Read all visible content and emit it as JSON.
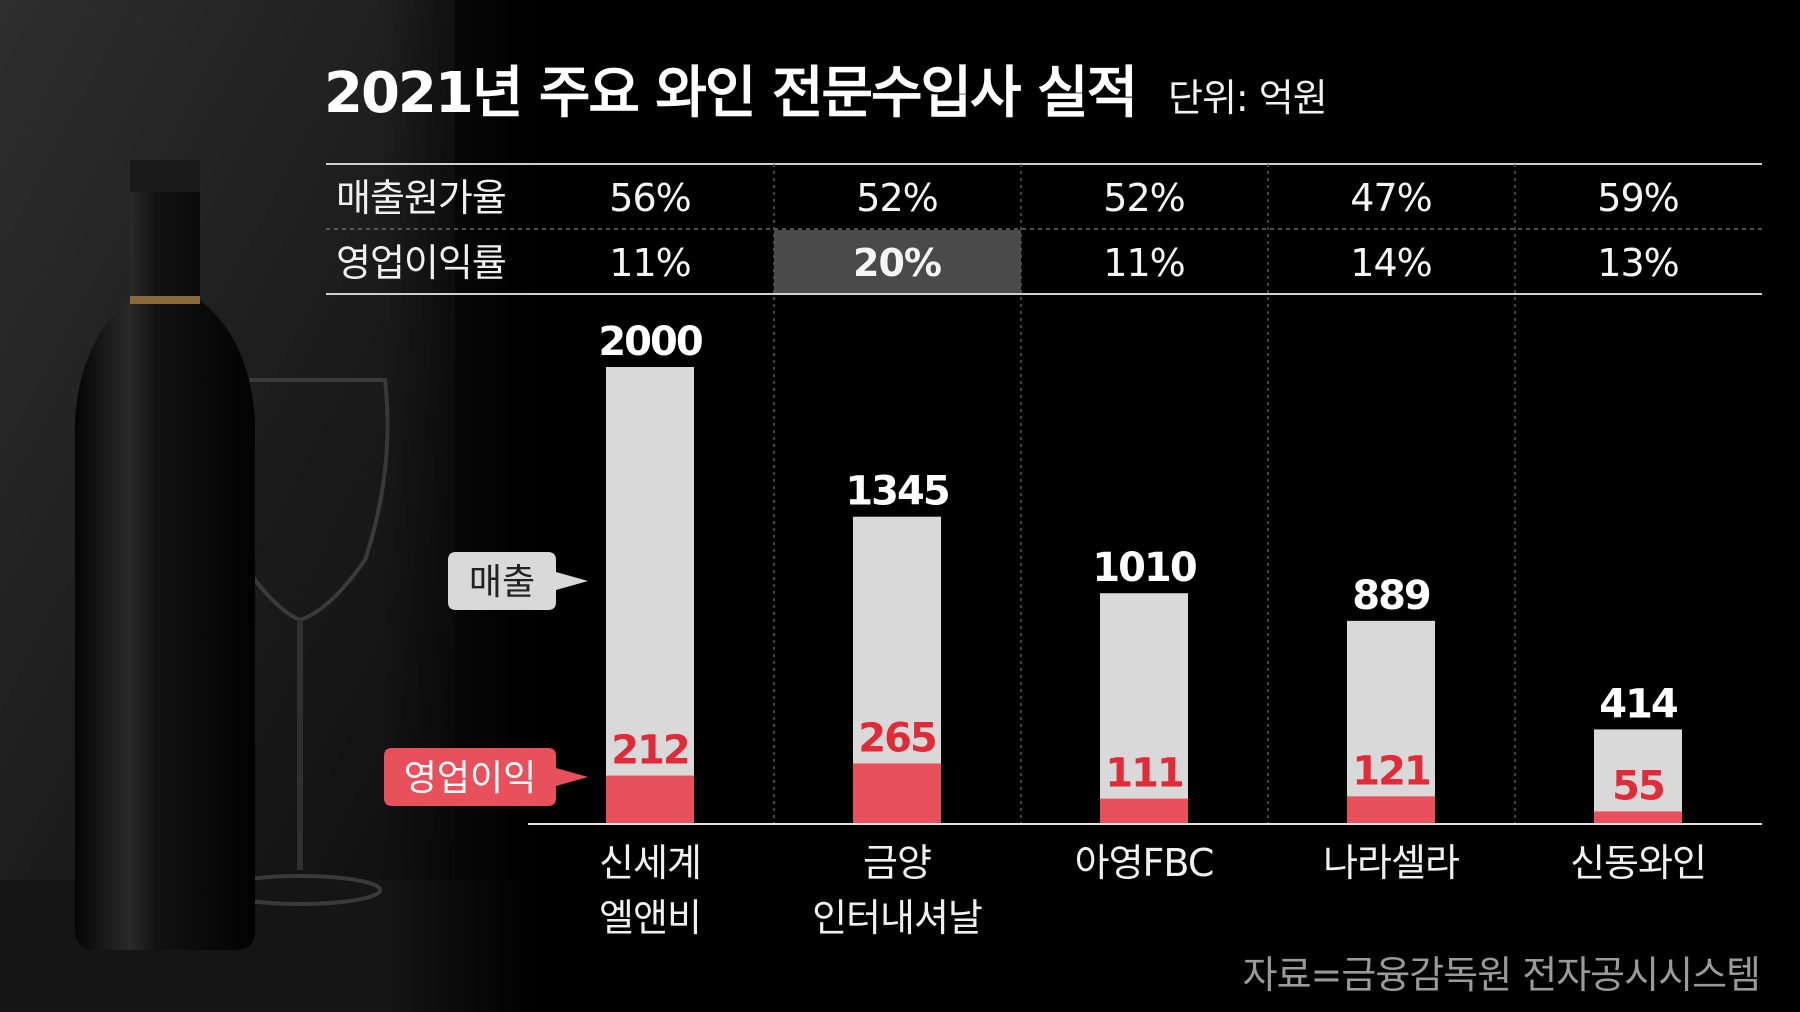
{
  "title": "2021년 주요 와인 전문수입사 실적",
  "unit": "단위: 억원",
  "source": "자료=금융감독원 전자공시시스템",
  "legend": {
    "sales": "매출",
    "operating_profit": "영업이익"
  },
  "table": {
    "row_labels": [
      "매출원가율",
      "영업이익률"
    ],
    "cost_ratio": [
      "56%",
      "52%",
      "52%",
      "47%",
      "59%"
    ],
    "margin": [
      "11%",
      "20%",
      "11%",
      "14%",
      "13%"
    ],
    "highlight_index": 1
  },
  "colors": {
    "sales_bar": "#d9d9d9",
    "profit_bar": "#e8505b",
    "profit_label": "#e02b38",
    "highlight_cell": "#4a4a4a",
    "background": "#000000"
  },
  "chart_data": {
    "type": "bar",
    "title": "2021년 주요 와인 전문수입사 실적",
    "categories": [
      [
        "신세계",
        "엘앤비"
      ],
      [
        "금양",
        "인터내셔날"
      ],
      [
        "아영FBC"
      ],
      [
        "나라셀라"
      ],
      [
        "신동와인"
      ]
    ],
    "series": [
      {
        "name": "매출",
        "values": [
          2000,
          1345,
          1010,
          889,
          414
        ]
      },
      {
        "name": "영업이익",
        "values": [
          212,
          265,
          111,
          121,
          55
        ]
      }
    ],
    "stacked": false,
    "overlay": true,
    "ylim": [
      0,
      2000
    ],
    "grid": false
  }
}
